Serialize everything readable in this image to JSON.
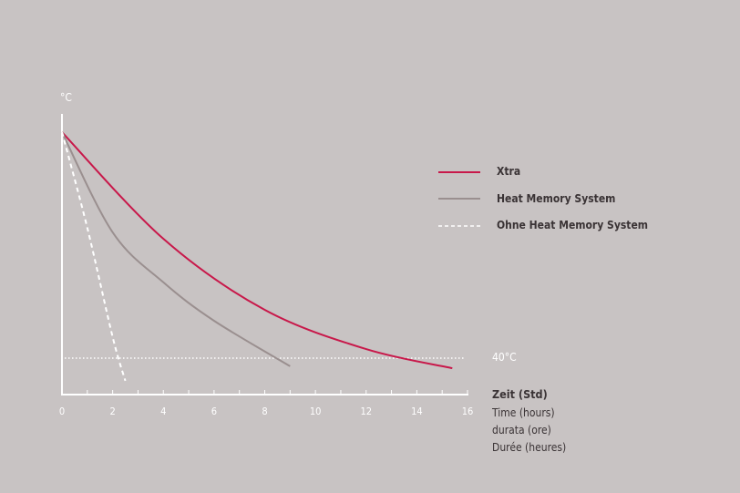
{
  "chart_data": {
    "type": "line",
    "ylabel": "°C",
    "xlabel": "Zeit (Std)",
    "xlabel_translations": [
      "Time (hours)",
      "durata (ore)",
      "Durée (heures)"
    ],
    "xlim": [
      0,
      16
    ],
    "x_ticks": [
      "0",
      "2",
      "4",
      "6",
      "8",
      "10",
      "12",
      "14",
      "16"
    ],
    "ylim": [
      0,
      100
    ],
    "y_tick_labels": "none",
    "grid": false,
    "legend_placement": "right",
    "reference_line": {
      "label": "40°C",
      "y": 13,
      "style": "dotted",
      "color": "#ffffff"
    },
    "series": [
      {
        "name": "Xtra",
        "color": "#c8184a",
        "style": "solid",
        "x": [
          0,
          4,
          8,
          12,
          15.4
        ],
        "y": [
          93.5,
          55.5,
          30.2,
          16.2,
          9.4
        ]
      },
      {
        "name": "Heat Memory System",
        "color": "#9a8f8f",
        "style": "solid",
        "x": [
          0,
          2,
          4,
          6,
          9
        ],
        "y": [
          93.5,
          57.8,
          40,
          26.3,
          10.1
        ]
      },
      {
        "name": "Ohne Heat Memory System",
        "color": "#ffffff",
        "style": "dashed",
        "x": [
          0,
          1,
          2,
          2.5
        ],
        "y": [
          93.5,
          59.4,
          20.5,
          4.9
        ]
      }
    ]
  }
}
